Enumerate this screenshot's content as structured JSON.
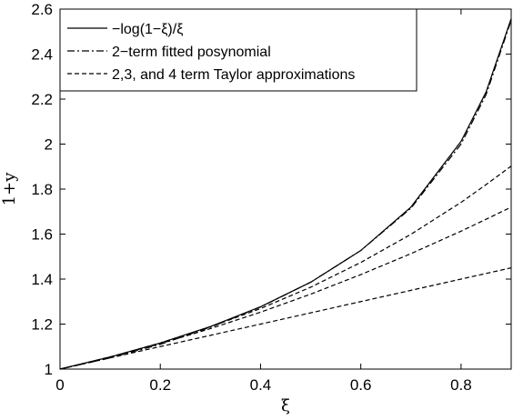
{
  "chart_data": {
    "type": "line",
    "title": "",
    "xlabel": "ξ",
    "ylabel": "1+y",
    "xlim": [
      0,
      0.9
    ],
    "ylim": [
      1,
      2.6
    ],
    "xticks": [
      0,
      0.2,
      0.4,
      0.6,
      0.8
    ],
    "xtick_labels": [
      "0",
      "0.2",
      "0.4",
      "0.6",
      "0.8"
    ],
    "yticks": [
      1,
      1.2,
      1.4,
      1.6,
      1.8,
      2,
      2.2,
      2.4,
      2.6
    ],
    "ytick_labels": [
      "1",
      "1.2",
      "1.4",
      "1.6",
      "1.8",
      "2",
      "2.2",
      "2.4",
      "2.6"
    ],
    "grid": false,
    "legend_position": "top-left",
    "x": [
      0,
      0.1,
      0.2,
      0.3,
      0.4,
      0.5,
      0.6,
      0.7,
      0.8,
      0.85,
      0.9
    ],
    "series": [
      {
        "name": "−log(1−ξ)/ξ",
        "style": "solid",
        "values": [
          1.0,
          1.054,
          1.116,
          1.189,
          1.277,
          1.386,
          1.527,
          1.72,
          2.012,
          2.232,
          2.558
        ]
      },
      {
        "name": "2−term fitted posynomial",
        "style": "dashdot",
        "values": [
          1.0,
          1.05,
          1.11,
          1.186,
          1.276,
          1.386,
          1.527,
          1.715,
          2.0,
          2.22,
          2.55
        ]
      },
      {
        "name": "2,3, and 4 term Taylor approximations",
        "style": "dashed",
        "values": [
          1.0,
          1.05,
          1.1,
          1.15,
          1.2,
          1.25,
          1.3,
          1.35,
          1.4,
          1.425,
          1.45
        ]
      },
      {
        "name": "",
        "style": "dashed",
        "values": [
          1.0,
          1.053,
          1.113,
          1.18,
          1.253,
          1.333,
          1.42,
          1.513,
          1.613,
          1.666,
          1.72
        ]
      },
      {
        "name": "",
        "style": "dashed",
        "values": [
          1.0,
          1.054,
          1.116,
          1.188,
          1.269,
          1.364,
          1.474,
          1.599,
          1.741,
          1.82,
          1.902
        ]
      }
    ]
  }
}
